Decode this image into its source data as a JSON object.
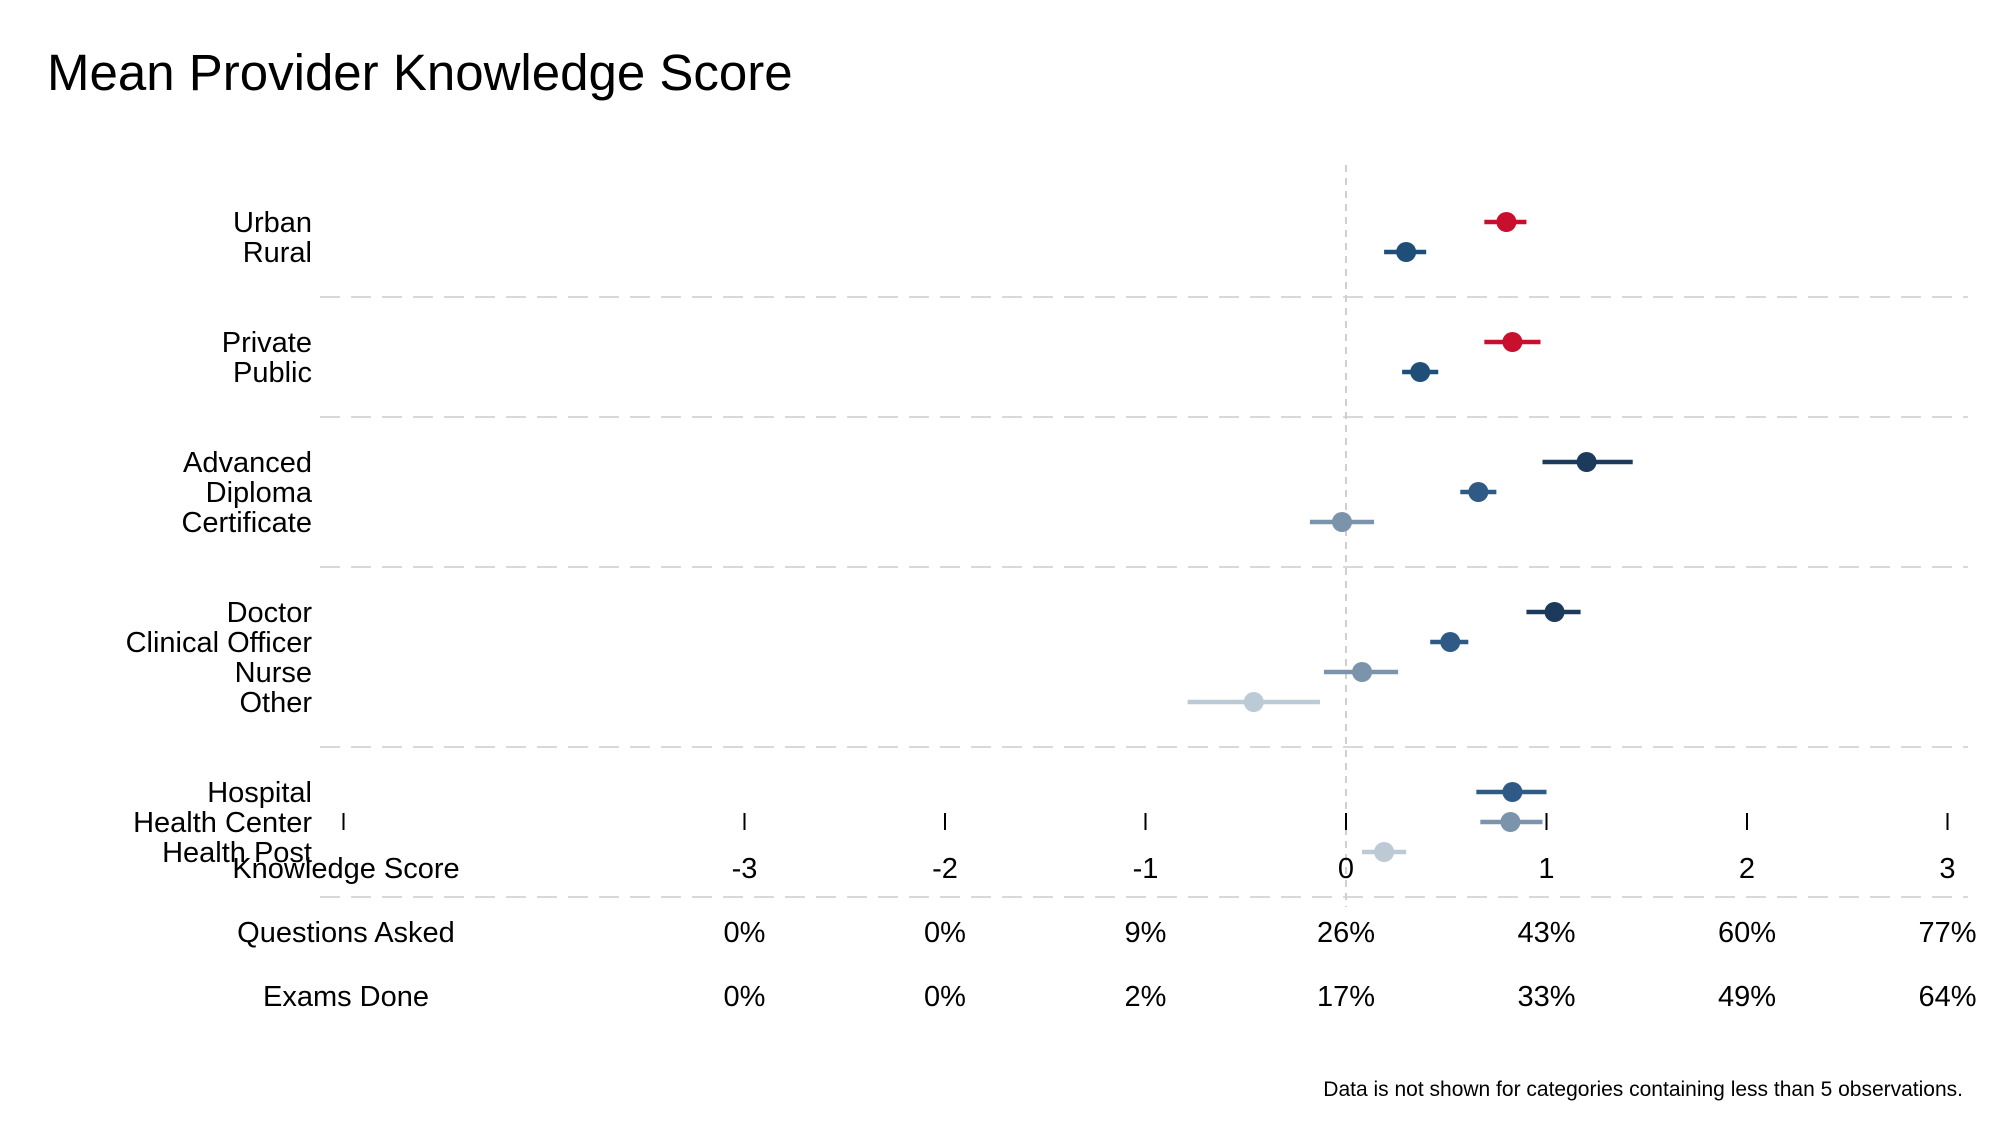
{
  "chart_data": {
    "type": "scatter",
    "title": "Mean Provider Knowledge Score",
    "xlim": [
      -5,
      3
    ],
    "reference_line_x": 0,
    "groups": [
      {
        "rows": [
          {
            "label": "Urban",
            "value": 0.8,
            "ci": [
              0.69,
              0.9
            ],
            "color": "#c8102e"
          },
          {
            "label": "Rural",
            "value": 0.3,
            "ci": [
              0.19,
              0.4
            ],
            "color": "#1f4e79"
          }
        ]
      },
      {
        "rows": [
          {
            "label": "Private",
            "value": 0.83,
            "ci": [
              0.69,
              0.97
            ],
            "color": "#c8102e"
          },
          {
            "label": "Public",
            "value": 0.37,
            "ci": [
              0.28,
              0.46
            ],
            "color": "#1f4e79"
          }
        ]
      },
      {
        "rows": [
          {
            "label": "Advanced",
            "value": 1.2,
            "ci": [
              0.98,
              1.43
            ],
            "color": "#1b3a5c"
          },
          {
            "label": "Diploma",
            "value": 0.66,
            "ci": [
              0.57,
              0.75
            ],
            "color": "#2f5a86"
          },
          {
            "label": "Certificate",
            "value": -0.02,
            "ci": [
              -0.18,
              0.14
            ],
            "color": "#7b93ab"
          }
        ]
      },
      {
        "rows": [
          {
            "label": "Doctor",
            "value": 1.04,
            "ci": [
              0.9,
              1.17
            ],
            "color": "#1b3a5c"
          },
          {
            "label": "Clinical Officer",
            "value": 0.52,
            "ci": [
              0.42,
              0.61
            ],
            "color": "#2f5a86"
          },
          {
            "label": "Nurse",
            "value": 0.08,
            "ci": [
              -0.11,
              0.26
            ],
            "color": "#7b93ab"
          },
          {
            "label": "Other",
            "value": -0.46,
            "ci": [
              -0.79,
              -0.13
            ],
            "color": "#bccad6"
          }
        ]
      },
      {
        "rows": [
          {
            "label": "Hospital",
            "value": 0.83,
            "ci": [
              0.65,
              1.0
            ],
            "color": "#2f5a86"
          },
          {
            "label": "Health Center",
            "value": 0.82,
            "ci": [
              0.67,
              0.98
            ],
            "color": "#7b93ab"
          },
          {
            "label": "Health Post",
            "value": 0.19,
            "ci": [
              0.08,
              0.3
            ],
            "color": "#bccad6"
          }
        ]
      }
    ],
    "x_tick_marks": [
      -5,
      -3,
      -2,
      -1,
      0,
      1,
      2,
      3
    ],
    "axis_table": [
      {
        "label": "Knowledge Score",
        "values": [
          "-3",
          "-2",
          "-1",
          "0",
          "1",
          "2",
          "3"
        ]
      },
      {
        "label": "Questions Asked",
        "values": [
          "0%",
          "0%",
          "9%",
          "26%",
          "43%",
          "60%",
          "77%"
        ]
      },
      {
        "label": "Exams Done",
        "values": [
          "0%",
          "0%",
          "2%",
          "17%",
          "33%",
          "49%",
          "64%"
        ]
      }
    ],
    "table_columns_x": [
      -3,
      -2,
      -1,
      0,
      1,
      2,
      3
    ],
    "note": "Data is not shown for categories containing less than 5 observations.",
    "grid": false,
    "legend": "none"
  }
}
